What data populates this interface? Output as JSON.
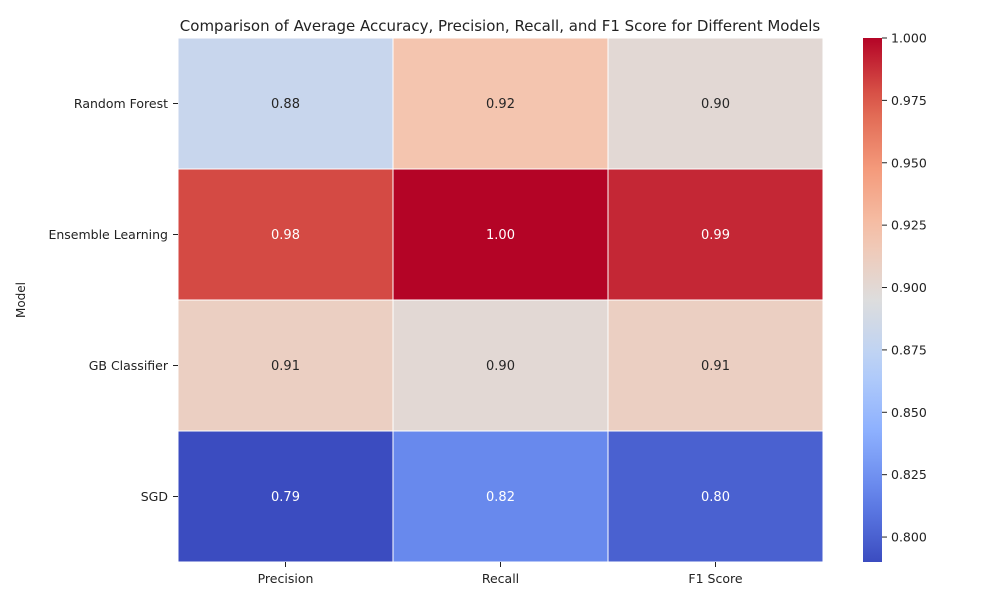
{
  "chart_data": {
    "type": "heatmap",
    "title": "Comparison of Average Accuracy, Precision, Recall, and F1 Score for Different Models",
    "ylabel": "Model",
    "xlabel": "",
    "rows": [
      "Random Forest",
      "Ensemble Learning",
      "GB Classifier",
      "SGD"
    ],
    "columns": [
      "Precision",
      "Recall",
      "F1 Score"
    ],
    "values": [
      [
        0.88,
        0.92,
        0.9
      ],
      [
        0.98,
        1.0,
        0.99
      ],
      [
        0.91,
        0.9,
        0.91
      ],
      [
        0.79,
        0.82,
        0.8
      ]
    ],
    "annotations": [
      [
        "0.88",
        "0.92",
        "0.90"
      ],
      [
        "0.98",
        "1.00",
        "0.99"
      ],
      [
        "0.91",
        "0.90",
        "0.91"
      ],
      [
        "0.79",
        "0.82",
        "0.80"
      ]
    ],
    "colormap": "coolwarm",
    "vmin": 0.79,
    "vmax": 1.0,
    "colorbar_ticks": [
      "0.800",
      "0.825",
      "0.850",
      "0.875",
      "0.900",
      "0.925",
      "0.950",
      "0.975",
      "1.000"
    ],
    "grid": false,
    "cell_border_color": "#ffffff"
  }
}
